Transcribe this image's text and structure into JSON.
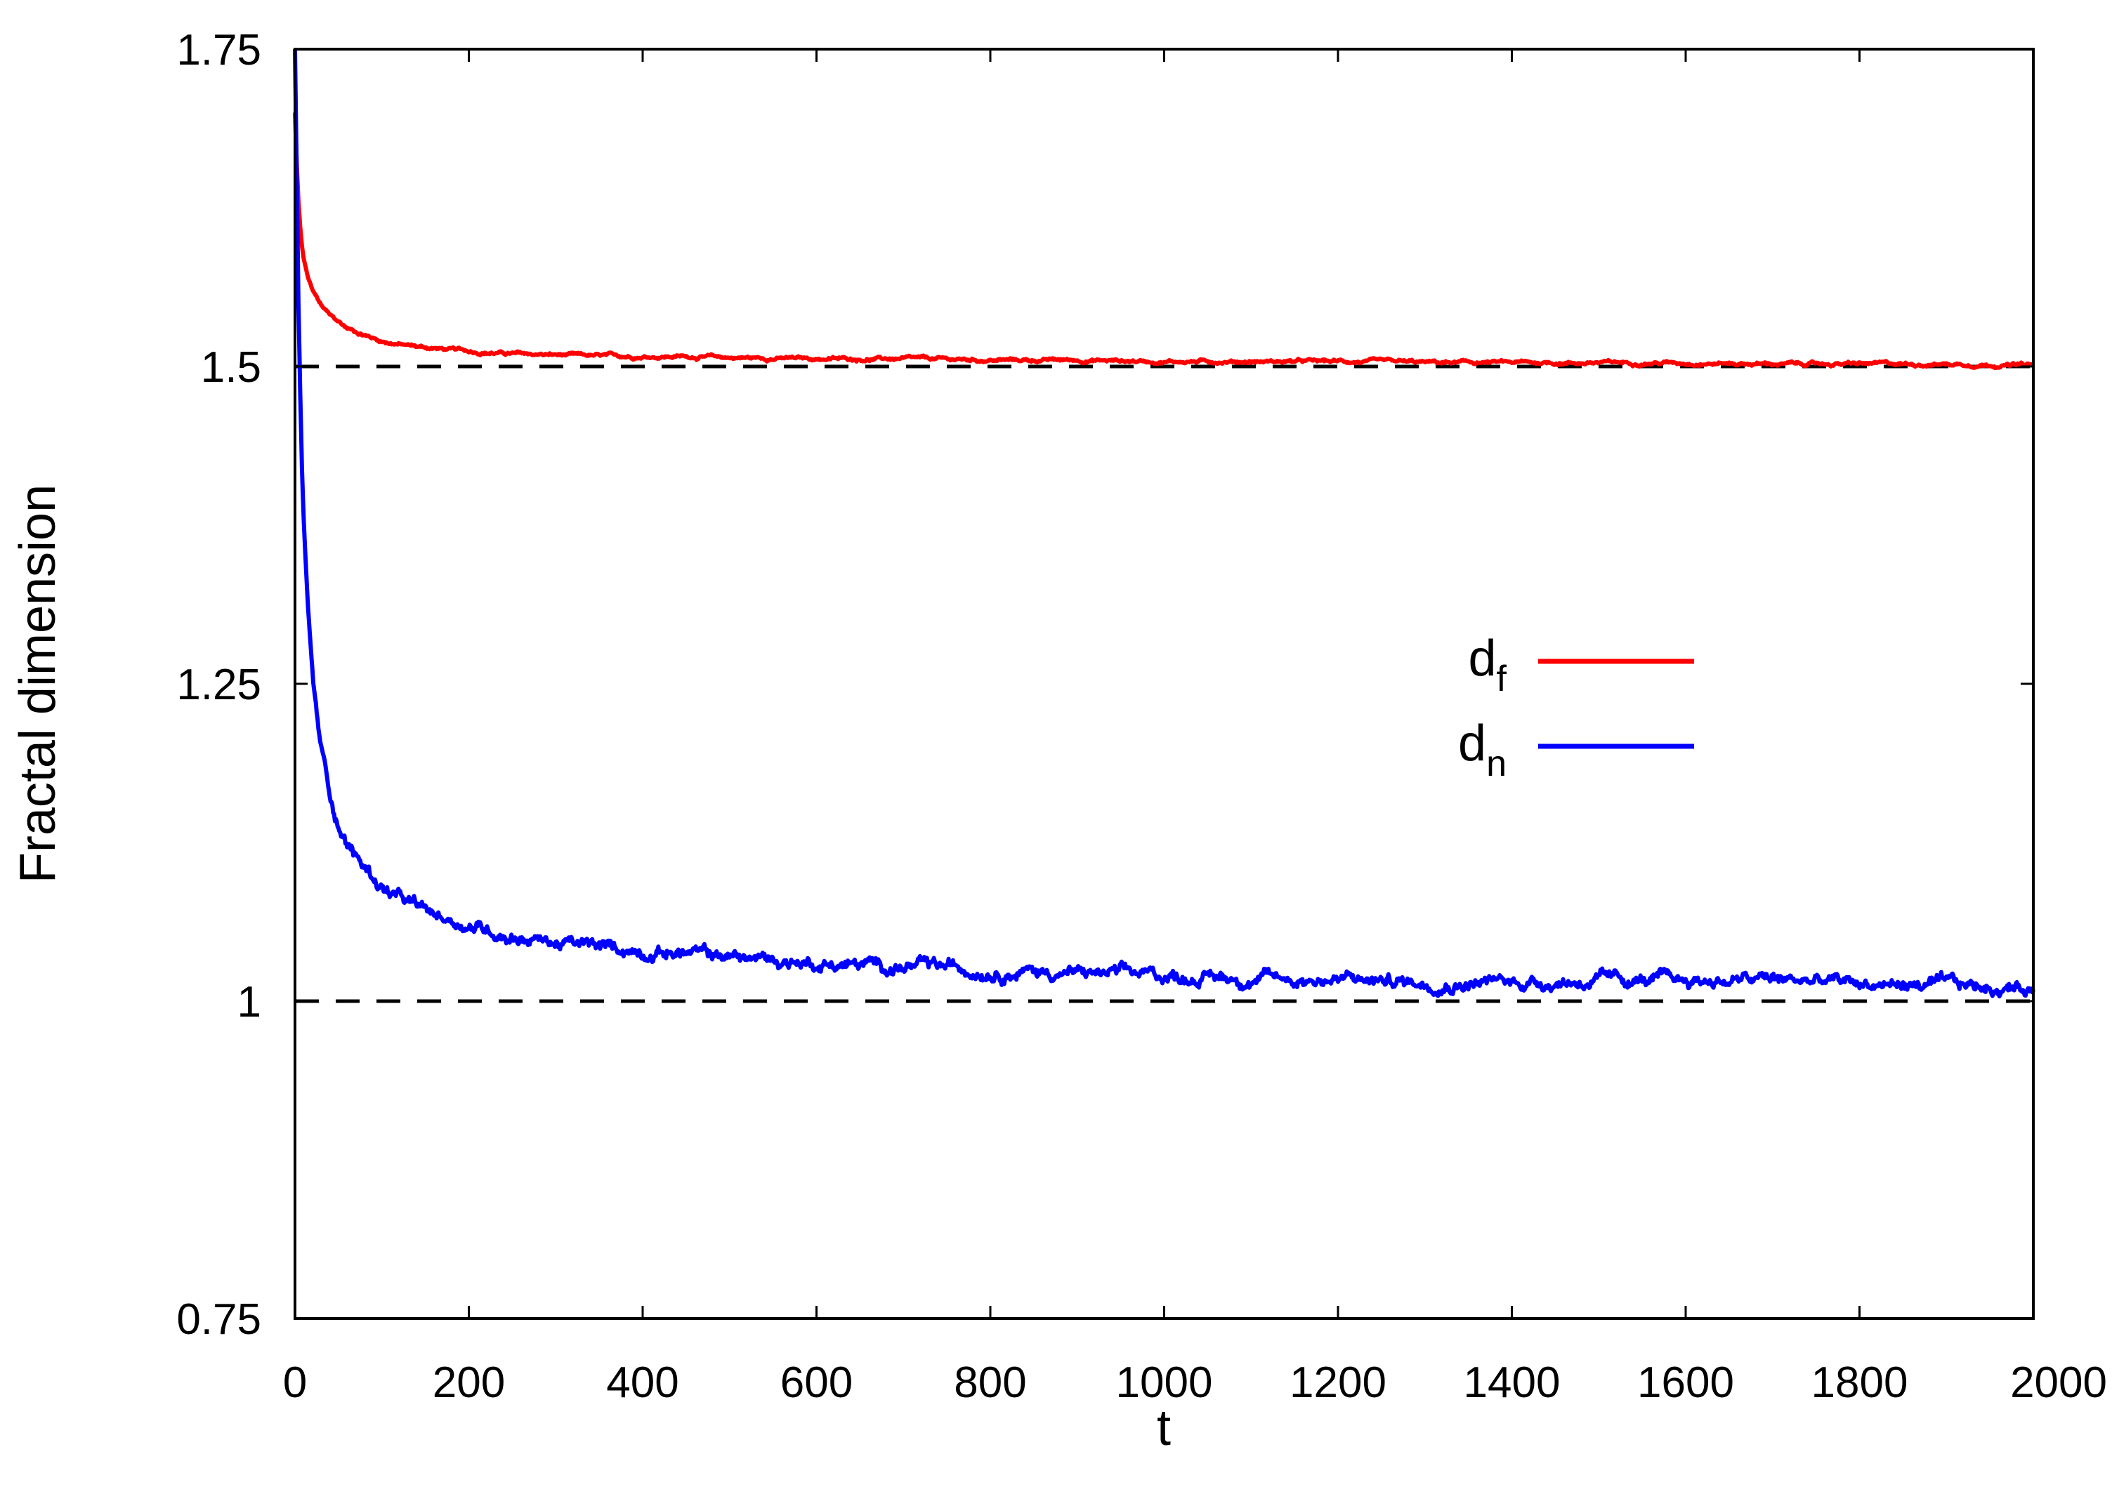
{
  "chart_data": {
    "type": "line",
    "title": "",
    "xlabel": "t",
    "ylabel": "Fractal dimension",
    "xlim": [
      0,
      2000
    ],
    "ylim": [
      0.75,
      1.75
    ],
    "xticks": [
      0,
      200,
      400,
      600,
      800,
      1000,
      1200,
      1400,
      1600,
      1800,
      2000
    ],
    "xtick_labels": [
      "0",
      "200",
      "400",
      "600",
      "800",
      "1000",
      "1200",
      "1400",
      "1600",
      "1800",
      "2000"
    ],
    "yticks": [
      0.75,
      1.0,
      1.25,
      1.5,
      1.75
    ],
    "ytick_labels": [
      "0.75",
      "1",
      "1.25",
      "1.5",
      "1.75"
    ],
    "grid": false,
    "legend_position": "right",
    "series": [
      {
        "name": "d",
        "subscript": "f",
        "color": "#ff0000",
        "x": [
          0,
          2,
          4,
          6,
          8,
          10,
          15,
          20,
          30,
          40,
          50,
          60,
          80,
          100,
          125,
          150,
          200,
          250,
          300,
          350,
          400,
          450,
          500,
          600,
          700,
          800,
          900,
          1000,
          1100,
          1200,
          1300,
          1400,
          1500,
          1600,
          1700,
          1800,
          1900,
          2000
        ],
        "y": [
          1.7,
          1.66,
          1.63,
          1.61,
          1.595,
          1.585,
          1.57,
          1.56,
          1.548,
          1.54,
          1.535,
          1.53,
          1.525,
          1.52,
          1.517,
          1.515,
          1.512,
          1.51,
          1.509,
          1.508,
          1.508,
          1.508,
          1.507,
          1.506,
          1.506,
          1.505,
          1.505,
          1.504,
          1.504,
          1.504,
          1.503,
          1.503,
          1.503,
          1.503,
          1.502,
          1.502,
          1.502,
          1.501
        ]
      },
      {
        "name": "d",
        "subscript": "n",
        "color": "#0000ff",
        "x": [
          0,
          2,
          4,
          6,
          8,
          10,
          12,
          15,
          20,
          25,
          30,
          40,
          50,
          60,
          80,
          100,
          125,
          150,
          200,
          250,
          300,
          350,
          400,
          450,
          500,
          600,
          700,
          800,
          900,
          1000,
          1100,
          1200,
          1300,
          1400,
          1500,
          1600,
          1700,
          1800,
          1900,
          2000
        ],
        "y": [
          1.75,
          1.65,
          1.55,
          1.48,
          1.42,
          1.38,
          1.35,
          1.31,
          1.26,
          1.225,
          1.2,
          1.165,
          1.14,
          1.125,
          1.105,
          1.09,
          1.078,
          1.07,
          1.06,
          1.052,
          1.046,
          1.042,
          1.04,
          1.038,
          1.035,
          1.03,
          1.027,
          1.025,
          1.022,
          1.02,
          1.018,
          1.017,
          1.015,
          1.015,
          1.016,
          1.016,
          1.017,
          1.014,
          1.012,
          1.01
        ]
      }
    ],
    "reference_lines": [
      {
        "y": 1.5,
        "style": "dashed",
        "color": "#000000"
      },
      {
        "y": 1.0,
        "style": "dashed",
        "color": "#000000"
      }
    ]
  }
}
